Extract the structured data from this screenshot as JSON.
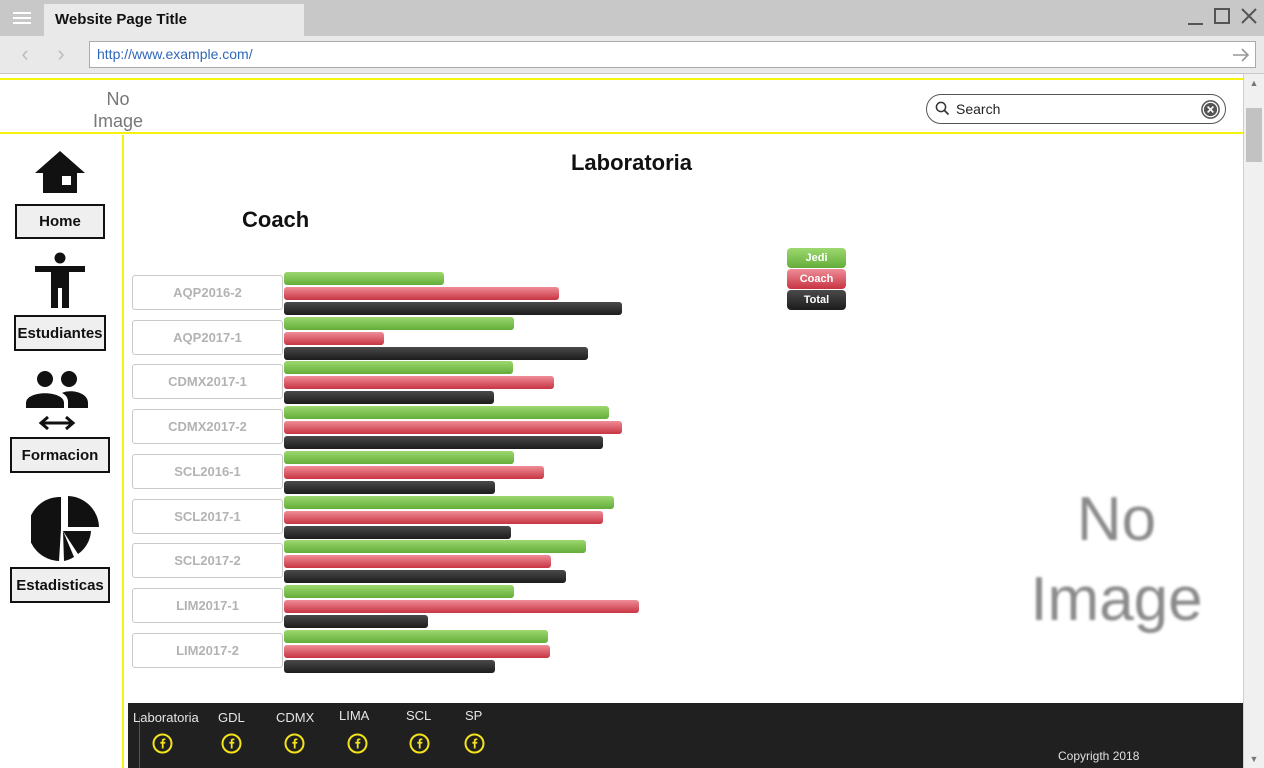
{
  "browser": {
    "tab_title": "Website Page Title",
    "url": "http://www.example.com/"
  },
  "header": {
    "logo_line1": "No",
    "logo_line2": "Image",
    "search_placeholder": "Search"
  },
  "sidebar": {
    "items": [
      {
        "label": "Home",
        "icon": "home-icon"
      },
      {
        "label": "Estudiantes",
        "icon": "person-icon"
      },
      {
        "label": "Formacion",
        "icon": "people-exchange-icon"
      },
      {
        "label": "Estadisticas",
        "icon": "pie-chart-icon"
      }
    ]
  },
  "main": {
    "title": "Laboratoria",
    "subtitle": "Coach",
    "placeholder_line1": "No",
    "placeholder_line2": "Image"
  },
  "chart_data": {
    "type": "bar",
    "orientation": "horizontal",
    "categories": [
      "AQP2016-2",
      "AQP2017-1",
      "CDMX2017-1",
      "CDMX2017-2",
      "SCL2016-1",
      "SCL2017-1",
      "SCL2017-2",
      "LIM2017-1",
      "LIM2017-2"
    ],
    "series": [
      {
        "name": "Jedi",
        "values": [
          160,
          230,
          229,
          325,
          230,
          330,
          302,
          230,
          264
        ],
        "color": "#6fb544"
      },
      {
        "name": "Coach",
        "values": [
          275,
          100,
          270,
          338,
          260,
          319,
          267,
          355,
          266
        ],
        "color": "#d2434f"
      },
      {
        "name": "Total",
        "values": [
          338,
          304,
          210,
          319,
          211,
          227,
          282,
          144,
          211
        ],
        "color": "#2a2a2a"
      }
    ],
    "legend_position": "top-right",
    "axes_visible": false
  },
  "footer": {
    "links": [
      "Laboratoria",
      "GDL",
      "CDMX",
      "LIMA",
      "SCL",
      "SP"
    ],
    "social_icon": "facebook-icon",
    "copyright": "Copyrigth 2018"
  },
  "colors": {
    "accent_yellow": "#f3f30c",
    "footer_bg": "#202020",
    "link_blue": "#2f67b8"
  }
}
